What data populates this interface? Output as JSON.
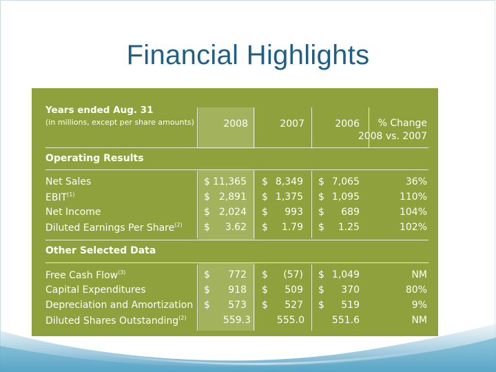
{
  "slide": {
    "title": "Financial Highlights"
  },
  "table": {
    "header": {
      "label": "Years ended Aug. 31",
      "sublabel": "(in millions, except per share amounts)",
      "years": [
        "2008",
        "2007",
        "2006"
      ],
      "change_line1": "% Change",
      "change_line2": "2008 vs. 2007"
    },
    "sections": [
      {
        "title": "Operating Results",
        "rows": [
          {
            "label": "Net Sales",
            "note": "",
            "dollar": [
              "$",
              "$",
              "$"
            ],
            "values": [
              "11,365",
              "8,349",
              "7,065"
            ],
            "change": "36%"
          },
          {
            "label": "EBIT",
            "note": "(1)",
            "dollar": [
              "$",
              "$",
              "$"
            ],
            "values": [
              "2,891",
              "1,375",
              "1,095"
            ],
            "change": "110%"
          },
          {
            "label": "Net Income",
            "note": "",
            "dollar": [
              "$",
              "$",
              "$"
            ],
            "values": [
              "2,024",
              "993",
              "689"
            ],
            "change": "104%"
          },
          {
            "label": "Diluted Earnings Per Share",
            "note": "(2)",
            "dollar": [
              "$",
              "$",
              "$"
            ],
            "values": [
              "3.62",
              "1.79",
              "1.25"
            ],
            "change": "102%"
          }
        ]
      },
      {
        "title": "Other Selected Data",
        "rows": [
          {
            "label": "Free Cash Flow",
            "note": "(3)",
            "dollar": [
              "$",
              "$",
              "$"
            ],
            "values": [
              "772",
              "(57)",
              "1,049"
            ],
            "change": "NM"
          },
          {
            "label": "Capital Expenditures",
            "note": "",
            "dollar": [
              "$",
              "$",
              "$"
            ],
            "values": [
              "918",
              "509",
              "370"
            ],
            "change": "80%"
          },
          {
            "label": "Depreciation and Amortization",
            "note": "",
            "dollar": [
              "$",
              "$",
              "$"
            ],
            "values": [
              "573",
              "527",
              "519"
            ],
            "change": "9%"
          },
          {
            "label": "Diluted Shares Outstanding",
            "note": "(2)",
            "dollar": [
              "",
              "",
              ""
            ],
            "values": [
              "559.3",
              "555.0",
              "551.6"
            ],
            "change": "NM"
          }
        ]
      }
    ]
  },
  "colors": {
    "title": "#1f5f86",
    "panel": "#8ea13c",
    "highlight_column": "#a3b25c",
    "wave": "#4f9cc0"
  }
}
